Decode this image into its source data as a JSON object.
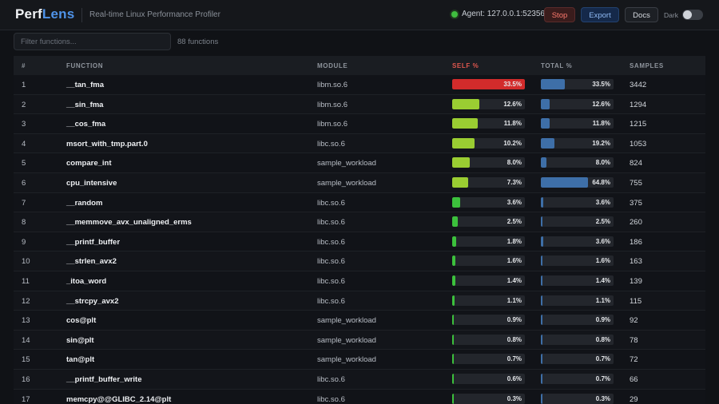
{
  "header": {
    "logo_perf": "Perf",
    "logo_lens": "Lens",
    "subtitle": "Real-time Linux Performance Profiler",
    "agent_status": "Agent: 127.0.0.1:52356",
    "stop_label": "Stop",
    "export_label": "Export",
    "docs_label": "Docs",
    "dark_label": "Dark"
  },
  "toolbar": {
    "filter_placeholder": "Filter functions...",
    "count": "88 functions"
  },
  "table": {
    "columns": [
      "#",
      "FUNCTION",
      "MODULE",
      "SELF %",
      "TOTAL %",
      "SAMPLES"
    ],
    "rows": [
      {
        "idx": "1",
        "fn": "__tan_fma",
        "module": "libm.so.6",
        "self": 33.5,
        "self_label": "33.5%",
        "total": 33.5,
        "total_label": "33.5%",
        "samples": "3442"
      },
      {
        "idx": "2",
        "fn": "__sin_fma",
        "module": "libm.so.6",
        "self": 12.6,
        "self_label": "12.6%",
        "total": 12.6,
        "total_label": "12.6%",
        "samples": "1294"
      },
      {
        "idx": "3",
        "fn": "__cos_fma",
        "module": "libm.so.6",
        "self": 11.8,
        "self_label": "11.8%",
        "total": 11.8,
        "total_label": "11.8%",
        "samples": "1215"
      },
      {
        "idx": "4",
        "fn": "msort_with_tmp.part.0",
        "module": "libc.so.6",
        "self": 10.2,
        "self_label": "10.2%",
        "total": 19.2,
        "total_label": "19.2%",
        "samples": "1053"
      },
      {
        "idx": "5",
        "fn": "compare_int",
        "module": "sample_workload",
        "self": 8.0,
        "self_label": "8.0%",
        "total": 8.0,
        "total_label": "8.0%",
        "samples": "824"
      },
      {
        "idx": "6",
        "fn": "cpu_intensive",
        "module": "sample_workload",
        "self": 7.3,
        "self_label": "7.3%",
        "total": 64.8,
        "total_label": "64.8%",
        "samples": "755"
      },
      {
        "idx": "7",
        "fn": "__random",
        "module": "libc.so.6",
        "self": 3.6,
        "self_label": "3.6%",
        "total": 3.6,
        "total_label": "3.6%",
        "samples": "375"
      },
      {
        "idx": "8",
        "fn": "__memmove_avx_unaligned_erms",
        "module": "libc.so.6",
        "self": 2.5,
        "self_label": "2.5%",
        "total": 2.5,
        "total_label": "2.5%",
        "samples": "260"
      },
      {
        "idx": "9",
        "fn": "__printf_buffer",
        "module": "libc.so.6",
        "self": 1.8,
        "self_label": "1.8%",
        "total": 3.6,
        "total_label": "3.6%",
        "samples": "186"
      },
      {
        "idx": "10",
        "fn": "__strlen_avx2",
        "module": "libc.so.6",
        "self": 1.6,
        "self_label": "1.6%",
        "total": 1.6,
        "total_label": "1.6%",
        "samples": "163"
      },
      {
        "idx": "11",
        "fn": "_itoa_word",
        "module": "libc.so.6",
        "self": 1.4,
        "self_label": "1.4%",
        "total": 1.4,
        "total_label": "1.4%",
        "samples": "139"
      },
      {
        "idx": "12",
        "fn": "__strcpy_avx2",
        "module": "libc.so.6",
        "self": 1.1,
        "self_label": "1.1%",
        "total": 1.1,
        "total_label": "1.1%",
        "samples": "115"
      },
      {
        "idx": "13",
        "fn": "cos@plt",
        "module": "sample_workload",
        "self": 0.9,
        "self_label": "0.9%",
        "total": 0.9,
        "total_label": "0.9%",
        "samples": "92"
      },
      {
        "idx": "14",
        "fn": "sin@plt",
        "module": "sample_workload",
        "self": 0.8,
        "self_label": "0.8%",
        "total": 0.8,
        "total_label": "0.8%",
        "samples": "78"
      },
      {
        "idx": "15",
        "fn": "tan@plt",
        "module": "sample_workload",
        "self": 0.7,
        "self_label": "0.7%",
        "total": 0.7,
        "total_label": "0.7%",
        "samples": "72"
      },
      {
        "idx": "16",
        "fn": "__printf_buffer_write",
        "module": "libc.so.6",
        "self": 0.6,
        "self_label": "0.6%",
        "total": 0.7,
        "total_label": "0.7%",
        "samples": "66"
      },
      {
        "idx": "17",
        "fn": "memcpy@@GLIBC_2.14@plt",
        "module": "libc.so.6",
        "self": 0.3,
        "self_label": "0.3%",
        "total": 0.3,
        "total_label": "0.3%",
        "samples": "29"
      }
    ]
  },
  "colors": {
    "self_high": "#d22b2b",
    "self_mid": "#9acd32",
    "self_low": "#3cc13c",
    "total": "#3e6fa8"
  }
}
